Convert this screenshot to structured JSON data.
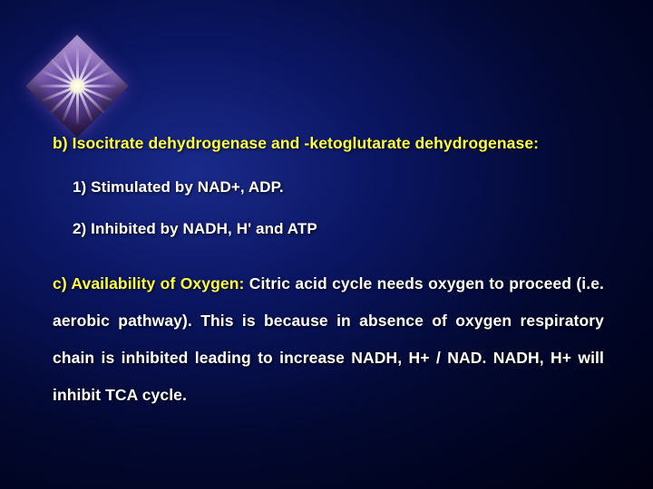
{
  "slide": {
    "background": {
      "gradient_center": "#1a2a8a",
      "gradient_mid": "#0a1560",
      "gradient_outer": "#020830",
      "gradient_edge": "#000010"
    },
    "decoration": {
      "type": "diamond-starburst",
      "diamond_colors": [
        "#b090d8",
        "#7050a8",
        "#3a2068"
      ],
      "ray_count": 16,
      "ray_color": "#ffffff",
      "core_color": "#ffffff"
    },
    "text_color": "#ffffff",
    "highlight_color": "#fefe40",
    "font_family": "Arial",
    "font_weight": "bold",
    "heading_b": {
      "label": "b) Isocitrate dehydrogenase and -ketoglutarate dehydrogenase:",
      "fontsize": 17.5,
      "color": "#fefe40"
    },
    "sub1": {
      "label": "1) Stimulated by NAD+, ADP.",
      "fontsize": 17
    },
    "sub2": {
      "label": "2) Inhibited by NADH, H' and ATP",
      "fontsize": 17
    },
    "heading_c": {
      "lead": "c) Availability of Oxygen:",
      "lead_color": "#fefe40",
      "body": " Citric acid cycle needs oxygen to proceed (i.e. aerobic pathway). This is because in absence of oxygen respiratory chain is inhibited leading to increase NADH, H+ / NAD. NADH, H+ will inhibit TCA cycle.",
      "fontsize": 17.5,
      "line_height": 2.35,
      "align": "justify"
    }
  }
}
